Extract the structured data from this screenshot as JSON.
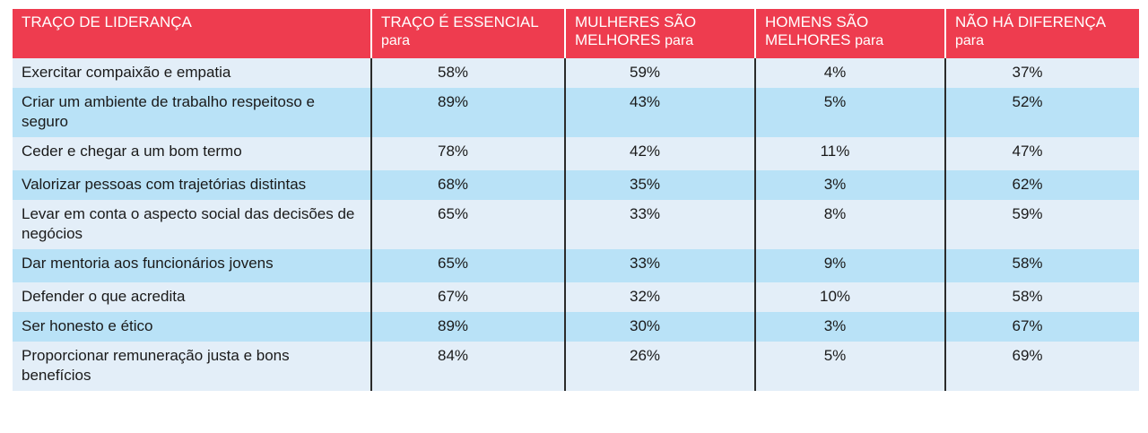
{
  "chart_data": {
    "type": "table",
    "header": [
      {
        "main": "TRAÇO DE LIDERANÇA",
        "suffix": ""
      },
      {
        "main": "TRAÇO É ESSENCIAL",
        "suffix": "para"
      },
      {
        "main": "MULHERES SÃO MELHORES",
        "suffix": "para"
      },
      {
        "main": "HOMENS SÃO MELHORES",
        "suffix": "para"
      },
      {
        "main": "NÃO HÁ DIFERENÇA",
        "suffix": "para"
      }
    ],
    "rows": [
      {
        "trait": "Exercitar compaixão e empatia",
        "essential": "58%",
        "women": "59%",
        "men": "4%",
        "nodiff": "37%"
      },
      {
        "trait": "Criar um ambiente de trabalho respeitoso e seguro",
        "essential": "89%",
        "women": "43%",
        "men": "5%",
        "nodiff": "52%"
      },
      {
        "trait": "Ceder e chegar a um bom termo",
        "essential": "78%",
        "women": "42%",
        "men": "11%",
        "nodiff": "47%"
      },
      {
        "trait": "Valorizar pessoas com trajetórias distintas",
        "essential": "68%",
        "women": "35%",
        "men": "3%",
        "nodiff": "62%"
      },
      {
        "trait": "Levar em conta o aspecto social das decisões de negócios",
        "essential": "65%",
        "women": "33%",
        "men": "8%",
        "nodiff": "59%"
      },
      {
        "trait": "Dar mentoria aos funcionários jovens",
        "essential": "65%",
        "women": "33%",
        "men": "9%",
        "nodiff": "58%"
      },
      {
        "trait": "Defender o que acredita",
        "essential": "67%",
        "women": "32%",
        "men": "10%",
        "nodiff": "58%"
      },
      {
        "trait": "Ser honesto e ético",
        "essential": "89%",
        "women": "30%",
        "men": "3%",
        "nodiff": "67%"
      },
      {
        "trait": "Proporcionar remuneração justa e bons benefícios",
        "essential": "84%",
        "women": "26%",
        "men": "5%",
        "nodiff": "69%"
      }
    ]
  },
  "colors": {
    "header_bg": "#ee3c4f",
    "row_light": "#e3eef8",
    "row_blue": "#b9e2f7",
    "divider": "#2b2b2b"
  }
}
